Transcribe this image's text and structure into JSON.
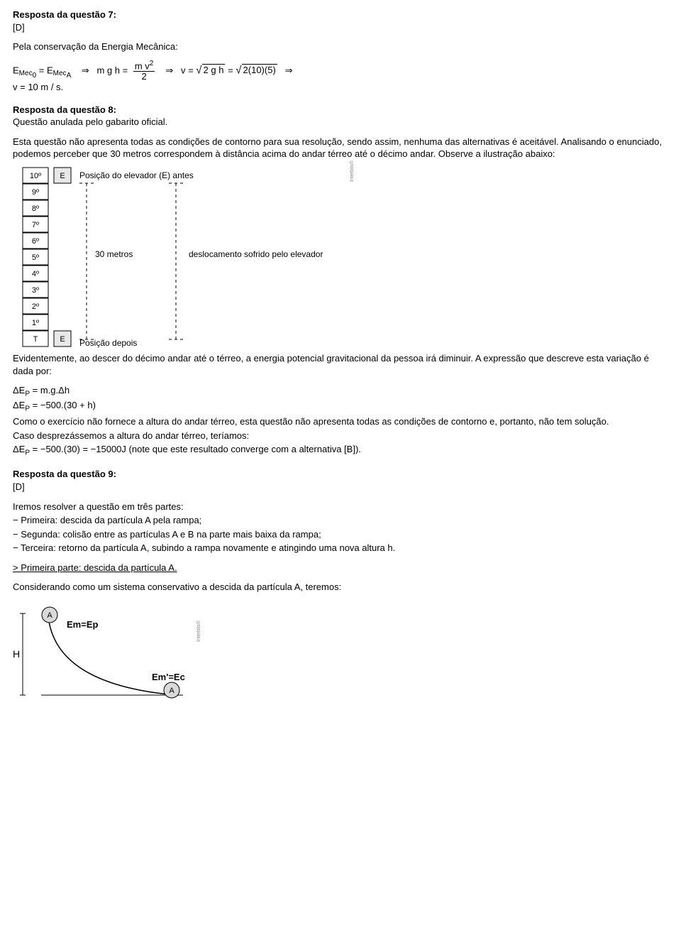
{
  "q7": {
    "title": "Resposta da questão 7:",
    "answer": "[D]",
    "intro": "Pela conservação da Energia Mecânica:",
    "eq_left_E0": "E",
    "eq_left_Mec": "Mec",
    "eq_left_sub0": "0",
    "eq_left_eqsym": "=",
    "eq_left_subA": "A",
    "eq_arrow": "⇒",
    "mgh_m": "m",
    "mgh_g": "g",
    "mgh_h": "h",
    "frac_num": "m v",
    "frac_sq": "2",
    "frac_den": "2",
    "v_eq": "v",
    "two_g_h": "2 g h",
    "two105": "2(10)(5)",
    "vresult": "v = 10  m / s."
  },
  "q8": {
    "title": "Resposta da questão 8:",
    "line1": "Questão anulada pelo gabarito oficial.",
    "para1": "Esta questão não apresenta todas as condições de contorno para sua resolução, sendo assim, nenhuma das alternativas é aceitável. Analisando o enunciado, podemos perceber que 30 metros correspondem à distância acima do andar térreo até o décimo andar. Observe a ilustração abaixo:",
    "floors": [
      "10º",
      "9º",
      "8º",
      "7º",
      "6º",
      "5º",
      "4º",
      "3º",
      "2º",
      "1º",
      "T"
    ],
    "E_label": "E",
    "pos_before": "Posição do elevador (E) antes",
    "thirty": "30 metros",
    "desloc": "deslocamento sofrido pelo elevador",
    "pos_after": "Posição depois",
    "watermark": "Interbits®",
    "para2": "Evidentemente, ao descer do décimo andar até o térreo, a energia potencial gravitacional da pessoa irá diminuir. A expressão que descreve esta variação é dada por:",
    "eqA": "ΔE",
    "eqA_sub": "P",
    "eqA_rhs": " = m.g.Δh",
    "eqB_rhs": " = −500.(30 + h)",
    "para3": "Como o exercício não fornece a altura do andar térreo, esta questão não apresenta todas as condições de contorno e, portanto, não tem solução.",
    "para4": "Caso desprezássemos a altura do andar térreo, teríamos:",
    "eqC_rhs": " = −500.(30) = −15000J ",
    "eqC_tail": "(note que este resultado converge com a alternativa [B])."
  },
  "q9": {
    "title": "Resposta da questão 9:",
    "answer": "[D]",
    "intro": "Iremos resolver a questão em três partes:",
    "p1": "− Primeira: descida da partícula A pela rampa;",
    "p2": "− Segunda: colisão entre as partículas A e B na parte mais baixa da rampa;",
    "p3": "− Terceira: retorno da partícula A, subindo a rampa novamente e atingindo uma nova altura h.",
    "first_part": "> Primeira parte: descida da partícula A.",
    "cons": "Considerando como um sistema conservativo a descida da partícula A, teremos:",
    "A": "A",
    "H": "H",
    "EmEp": "Em=Ep",
    "EmEc": "Em'=Ec",
    "watermark": "Interbits®"
  }
}
